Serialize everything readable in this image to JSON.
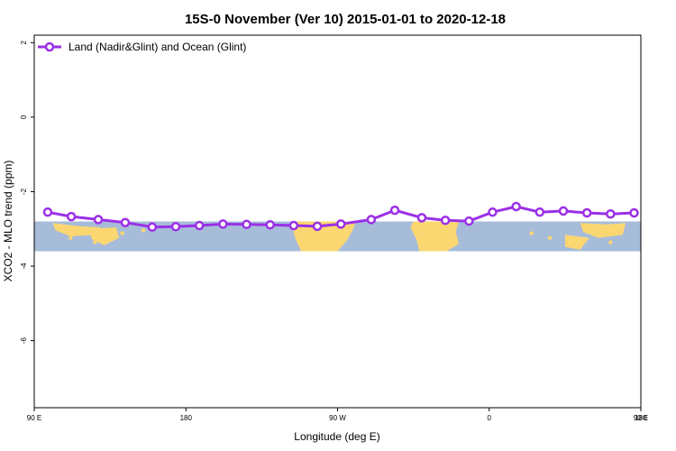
{
  "chart_data": {
    "type": "line",
    "title": "15S-0 November (Ver 10)   2015-01-01 to 2020-12-18",
    "xlabel": "Longitude (deg E)",
    "ylabel": "XCO2 - MLO trend (ppm)",
    "xlim": [
      90,
      450
    ],
    "ylim": [
      -7.8,
      2.2
    ],
    "x_ticks": [
      {
        "value": 90,
        "label": "90 E"
      },
      {
        "value": 180,
        "label": "180"
      },
      {
        "value": 270,
        "label": "90 W"
      },
      {
        "value": 360,
        "label": "0"
      },
      {
        "value": 450,
        "label": "90 E"
      }
    ],
    "x_end_label": "180",
    "y_ticks": [
      {
        "value": 2,
        "label": "2"
      },
      {
        "value": 0,
        "label": "0"
      },
      {
        "value": -2,
        "label": "-2"
      },
      {
        "value": -4,
        "label": "-4"
      },
      {
        "value": -6,
        "label": "-6"
      }
    ],
    "legend": {
      "position": "top-left"
    },
    "map_band": {
      "y_top": -2.8,
      "y_bottom": -3.6,
      "ocean_color": "#a7bcd9",
      "land_color": "#fbd772"
    },
    "series": [
      {
        "name": "Land (Nadir&Glint) and Ocean (Glint)",
        "color": "#9b30e6",
        "x": [
          98,
          112,
          128,
          144,
          160,
          174,
          188,
          202,
          216,
          230,
          244,
          258,
          272,
          290,
          304,
          320,
          334,
          348,
          362,
          376,
          390,
          404,
          418,
          432,
          446
        ],
        "values": [
          -2.55,
          -2.67,
          -2.75,
          -2.83,
          -2.95,
          -2.94,
          -2.91,
          -2.87,
          -2.88,
          -2.89,
          -2.91,
          -2.93,
          -2.87,
          -2.75,
          -2.5,
          -2.7,
          -2.77,
          -2.79,
          -2.55,
          -2.4,
          -2.55,
          -2.52,
          -2.57,
          -2.6,
          -2.57
        ]
      }
    ]
  }
}
